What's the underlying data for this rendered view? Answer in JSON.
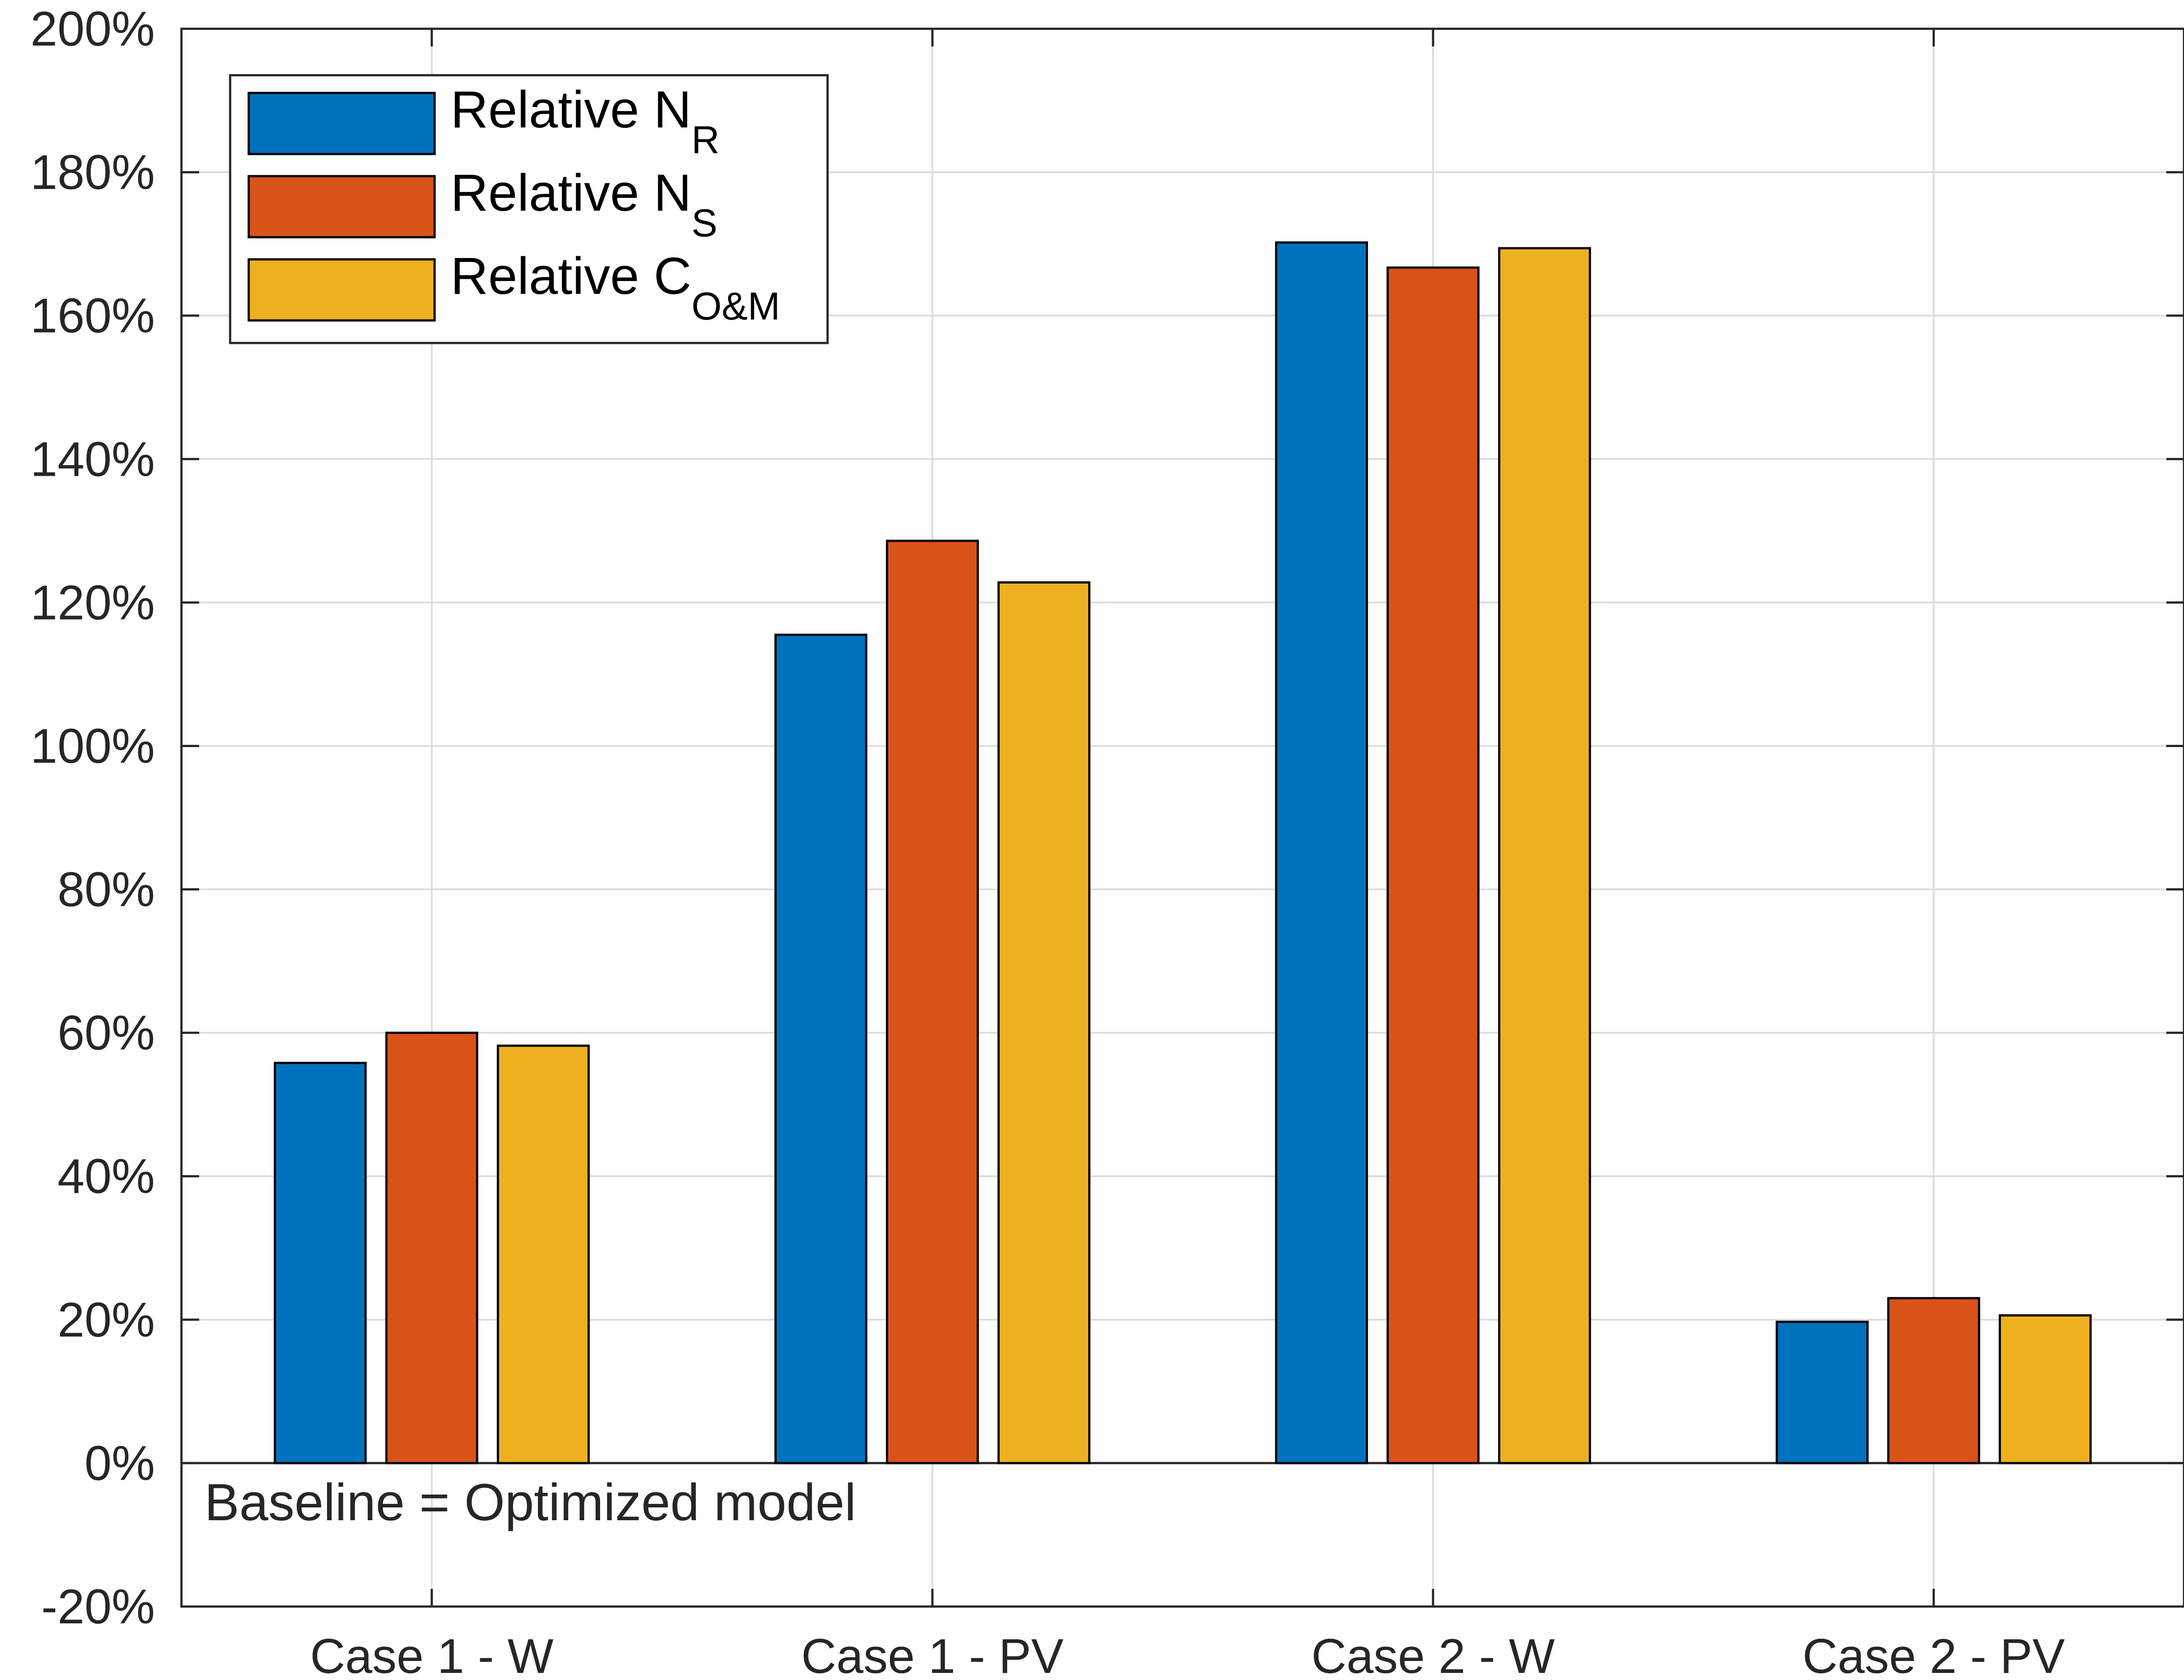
{
  "chart_data": {
    "type": "bar",
    "title": "",
    "xlabel": "",
    "ylabel": "",
    "categories": [
      "Case 1 - W",
      "Case 1 - PV",
      "Case 2 - W",
      "Case 2 - PV"
    ],
    "series": [
      {
        "name": "Relative N_R",
        "label_main": "Relative N",
        "label_sub": "R",
        "color": "#0072BD",
        "values": [
          55.8,
          115.5,
          170.2,
          19.7
        ]
      },
      {
        "name": "Relative N_S",
        "label_main": "Relative N",
        "label_sub": "S",
        "color": "#D95319",
        "values": [
          60.0,
          128.6,
          166.7,
          23.0
        ]
      },
      {
        "name": "Relative C_O&M",
        "label_main": "Relative C",
        "label_sub": "O&M",
        "color": "#EDB120",
        "values": [
          58.2,
          122.8,
          169.4,
          20.6
        ]
      }
    ],
    "ylim": [
      -20,
      200
    ],
    "yticks": [
      -20,
      0,
      20,
      40,
      60,
      80,
      100,
      120,
      140,
      160,
      180,
      200
    ],
    "ytick_labels": [
      "-20%",
      "0%",
      "20%",
      "40%",
      "60%",
      "80%",
      "100%",
      "120%",
      "140%",
      "160%",
      "180%",
      "200%"
    ],
    "grid": true,
    "baseline_value": 0,
    "legend_position": "top-left",
    "annotation": "Baseline = Optimized model"
  }
}
